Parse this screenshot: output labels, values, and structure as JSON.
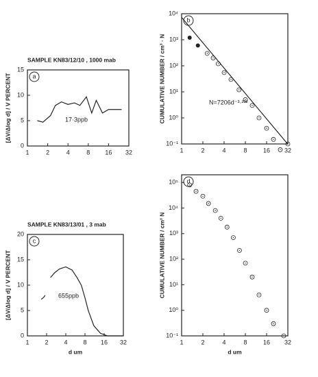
{
  "chart_data": [
    {
      "type": "line",
      "title": "SAMPLE KN83/12/10 , 1000 mab",
      "panel_label": "a",
      "y_label": "[ΔV/Δlog d] / V PERCENT",
      "annotation": "17·3ppb",
      "xlog": true,
      "ylog": false,
      "color": "#222",
      "x": [
        1.4,
        1.7,
        2.2,
        2.6,
        3.2,
        4,
        5,
        6,
        7.5,
        9,
        10.5,
        13,
        16,
        20,
        25
      ],
      "values": [
        5,
        4.7,
        6,
        8,
        8.7,
        8.2,
        8.5,
        8,
        9.7,
        6.5,
        9,
        6.5,
        7.2,
        7.2,
        7.2
      ],
      "xlim": [
        1,
        32
      ],
      "xticks": [
        1,
        2,
        4,
        8,
        16,
        32
      ],
      "ylim": [
        0,
        15
      ],
      "yticks": [
        0,
        5,
        10,
        15
      ]
    },
    {
      "type": "scatter",
      "panel_label": "b",
      "y_label": "CUMULATIVE NUMBER / cm³ · N",
      "annotation": "N=7206d⁻³·²³²",
      "xlog": true,
      "ylog": true,
      "series": [
        {
          "color": "#222",
          "marker": "filled",
          "x": [
            1.3,
            1.7
          ],
          "values": [
            1200,
            600
          ]
        },
        {
          "color": "#222",
          "marker": "open",
          "x": [
            2.3,
            2.8,
            3.3,
            4,
            5,
            6.5,
            8,
            10,
            12.5,
            16,
            20,
            25,
            32
          ],
          "values": [
            300,
            200,
            120,
            55,
            30,
            12,
            5,
            3,
            1,
            0.4,
            0.15,
            0.06,
            0.1
          ]
        }
      ],
      "fit_line": {
        "x": [
          1,
          32
        ],
        "values": [
          7206,
          0.098
        ]
      },
      "xlim": [
        1,
        32
      ],
      "xticks": [
        1,
        2,
        4,
        8,
        16,
        32
      ],
      "ylim": [
        0.1,
        10000
      ],
      "yticks": [
        {
          "value": 0.1,
          "label": "10⁻¹"
        },
        {
          "value": 1,
          "label": "10⁰"
        },
        {
          "value": 10,
          "label": "10¹"
        },
        {
          "value": 100,
          "label": "10²"
        },
        {
          "value": 1000,
          "label": "10³"
        },
        {
          "value": 10000,
          "label": "10⁴"
        }
      ]
    },
    {
      "type": "line",
      "title": "SAMPLE KN83/13/01 , 3 mab",
      "panel_label": "c",
      "y_label": "[ΔV/Δlog d] / V PERCENT",
      "annotation": "655ppb",
      "x_label": "d um",
      "xlog": true,
      "ylog": false,
      "color": "#222",
      "x": [
        1.65,
        1.8,
        1.9,
        2.1,
        2.3,
        2.7,
        3.2,
        4,
        5,
        6,
        7,
        8,
        9,
        11,
        14,
        18,
        25,
        32
      ],
      "values": [
        7.2,
        7.6,
        8,
        null,
        11.5,
        12.5,
        13.2,
        13.6,
        13,
        11.5,
        10,
        7.5,
        5,
        2,
        0.5,
        0,
        0,
        0
      ],
      "xlim": [
        1,
        32
      ],
      "xticks": [
        1,
        2,
        4,
        8,
        16,
        32
      ],
      "ylim": [
        0,
        20
      ],
      "yticks": [
        0,
        5,
        10,
        15,
        20
      ]
    },
    {
      "type": "scatter",
      "panel_label": "d",
      "y_label": "CUMULATIVE NUMBER / cm³ N",
      "x_label": "d um",
      "xlog": true,
      "ylog": true,
      "series": [
        {
          "color": "#222",
          "marker": "open",
          "x": [
            1.3,
            1.6,
            2,
            2.4,
            3,
            3.6,
            4.4,
            5.4,
            6.6,
            8,
            10,
            12.5,
            16,
            20,
            28
          ],
          "values": [
            80000,
            45000,
            29000,
            15000,
            8000,
            4000,
            1800,
            700,
            220,
            70,
            20,
            4,
            1,
            0.3,
            0.1
          ]
        }
      ],
      "xlim": [
        1,
        32
      ],
      "xticks": [
        1,
        2,
        4,
        8,
        16,
        32
      ],
      "ylim": [
        0.1,
        200000
      ],
      "yticks": [
        {
          "value": 0.1,
          "label": "10⁻¹"
        },
        {
          "value": 1,
          "label": "10⁰"
        },
        {
          "value": 10,
          "label": "10¹"
        },
        {
          "value": 100,
          "label": "10²"
        },
        {
          "value": 1000,
          "label": "10³"
        },
        {
          "value": 10000,
          "label": "10⁴"
        },
        {
          "value": 100000,
          "label": "10⁵"
        }
      ]
    }
  ]
}
